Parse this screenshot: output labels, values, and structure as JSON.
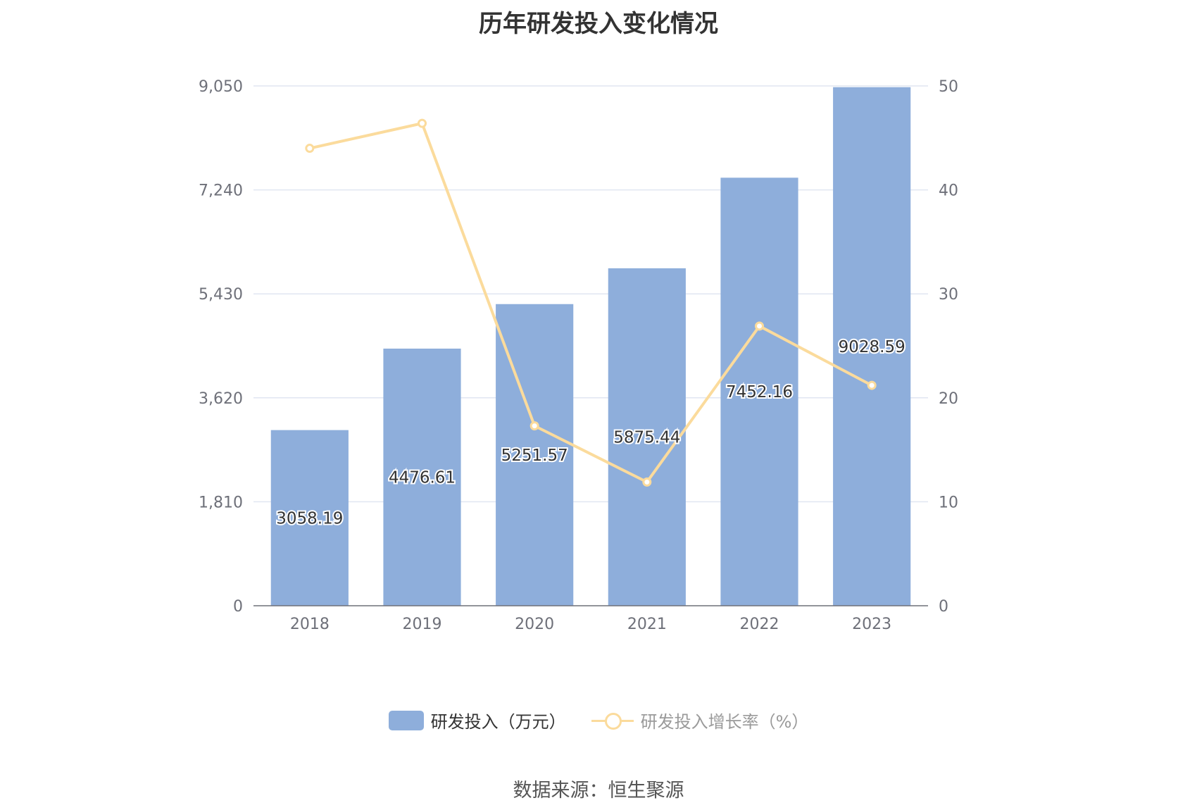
{
  "chart_data": {
    "type": "bar",
    "title": "历年研发投入变化情况",
    "categories": [
      "2018",
      "2019",
      "2020",
      "2021",
      "2022",
      "2023"
    ],
    "series": [
      {
        "name": "研发投入（万元）",
        "type": "bar",
        "axis": "left",
        "values": [
          3058.19,
          4476.61,
          5251.57,
          5875.44,
          7452.16,
          9028.59
        ],
        "color": "#8eaedb"
      },
      {
        "name": "研发投入增长率（%）",
        "type": "line",
        "axis": "right",
        "values": [
          44.0,
          46.4,
          17.3,
          11.9,
          26.9,
          21.2
        ],
        "color": "#fbdb9c"
      }
    ],
    "y_left": {
      "ticks": [
        "0",
        "1,810",
        "3,620",
        "5,430",
        "7,240",
        "9,050"
      ],
      "ylim": [
        0,
        9050
      ]
    },
    "y_right": {
      "ticks": [
        "0",
        "10",
        "20",
        "30",
        "40",
        "50"
      ],
      "ylim": [
        0,
        50
      ]
    },
    "grid": true,
    "legend_position": "bottom"
  },
  "source": "数据来源：恒生聚源"
}
